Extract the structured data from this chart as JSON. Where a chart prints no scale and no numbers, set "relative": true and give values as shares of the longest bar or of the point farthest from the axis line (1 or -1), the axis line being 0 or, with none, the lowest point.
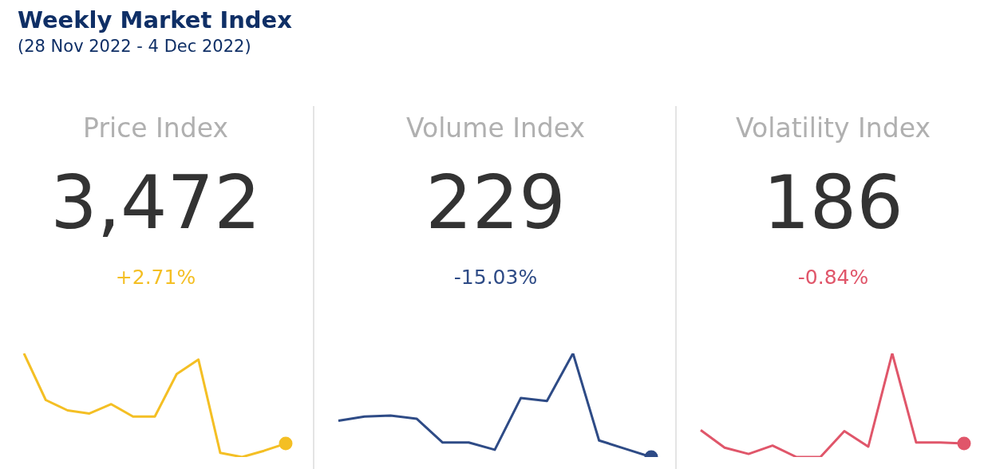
{
  "chart_data": [
    {
      "type": "other",
      "title": "Weekly Market Index",
      "subtitle": "(28 Nov 2022 - 4 Dec 2022)"
    },
    {
      "type": "line",
      "title": "Price Index",
      "annotations": [
        "3,472",
        "+2.71%"
      ],
      "relative": true,
      "categories": [
        null,
        null,
        null,
        null,
        null,
        null,
        null,
        null,
        null,
        null,
        null,
        null,
        null
      ],
      "series": [
        {
          "color": "#f4bf24",
          "values": [
            1,
            0.55,
            0.45,
            0.42,
            0.51,
            0.39,
            0.39,
            0.8,
            0.94,
            0.04,
            0,
            0.06,
            0.13
          ]
        }
      ]
    },
    {
      "type": "line",
      "title": "Volume Index",
      "annotations": [
        "229",
        "-15.03%"
      ],
      "relative": true,
      "categories": [
        null,
        null,
        null,
        null,
        null,
        null,
        null,
        null,
        null,
        null,
        null,
        null,
        null
      ],
      "series": [
        {
          "color": "#2e4b86",
          "values": [
            0.35,
            0.39,
            0.4,
            0.37,
            0.14,
            0.14,
            0.07,
            0.57,
            0.54,
            1,
            0.16,
            0.08,
            0
          ]
        }
      ]
    },
    {
      "type": "line",
      "title": "Volatility Index",
      "annotations": [
        "186",
        "-0.84%"
      ],
      "relative": true,
      "categories": [
        null,
        null,
        null,
        null,
        null,
        null,
        null,
        null,
        null,
        null,
        null,
        null
      ],
      "series": [
        {
          "color": "#e0566a",
          "values": [
            0.26,
            0.09,
            0.03,
            0.11,
            0,
            0,
            0.25,
            0.1,
            1,
            0.14,
            0.14,
            0.13
          ]
        }
      ]
    }
  ]
}
